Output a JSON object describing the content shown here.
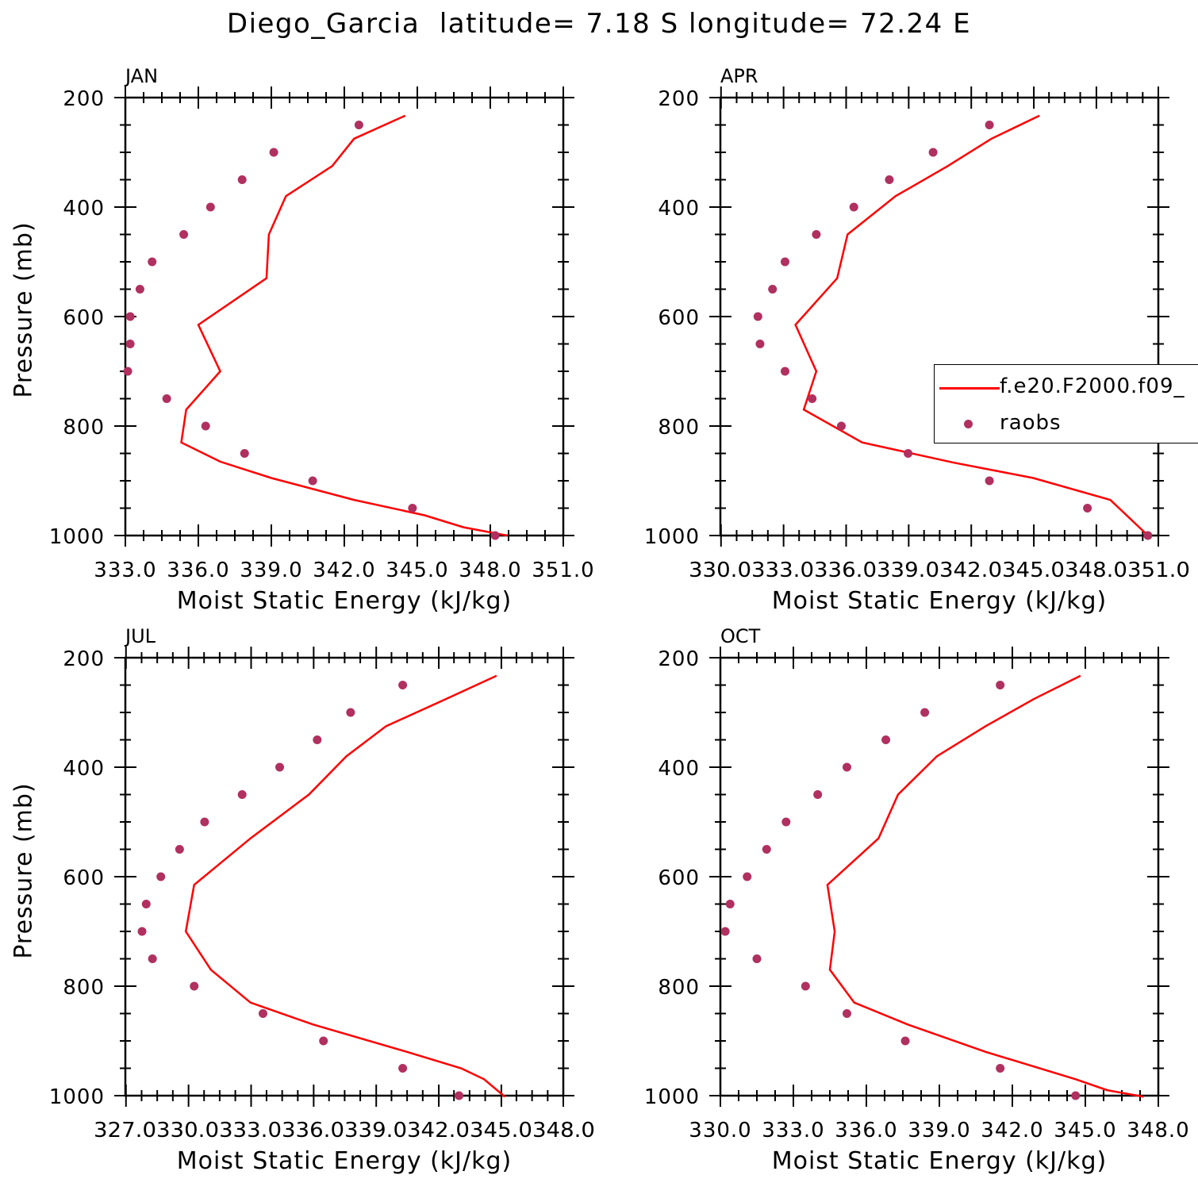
{
  "title": "Diego_Garcia  latitude= 7.18 S longitude= 72.24 E",
  "legend": {
    "model_label": "f.e20.F2000.f09_",
    "obs_label": "raobs",
    "model_color": "#ff0000",
    "obs_color": "#b03060"
  },
  "chart_data": [
    {
      "type": "line",
      "panel": "JAN",
      "xlabel": "Moist Static Energy (kJ/kg)",
      "ylabel": "Pressure (mb)",
      "xlim": [
        333.0,
        351.0
      ],
      "ylim": [
        1000,
        200
      ],
      "xticks": [
        333.0,
        336.0,
        339.0,
        342.0,
        345.0,
        348.0,
        351.0
      ],
      "xtick_labels": [
        "333.0",
        "336.0",
        "339.0",
        "342.0",
        "345.0",
        "348.0",
        "351.0"
      ],
      "yticks": [
        200,
        400,
        600,
        800,
        1000
      ],
      "ytick_labels": [
        "200",
        "400",
        "600",
        "800",
        "1000"
      ],
      "grid": false,
      "series": [
        {
          "name": "f.e20.F2000.f09_",
          "style": "line",
          "x": [
            344.5,
            342.4,
            341.5,
            339.6,
            338.9,
            338.8,
            336.0,
            336.9,
            335.5,
            335.3,
            336.9,
            339.0,
            342.4,
            345.3,
            346.9,
            348.7
          ],
          "y": [
            233,
            275,
            325,
            380,
            450,
            530,
            615,
            700,
            770,
            830,
            865,
            895,
            935,
            963,
            985,
            1000
          ]
        },
        {
          "name": "raobs",
          "style": "markers",
          "x": [
            342.6,
            339.1,
            337.8,
            336.5,
            335.4,
            334.1,
            333.6,
            333.2,
            333.2,
            333.1,
            334.7,
            336.3,
            337.9,
            340.7,
            344.8,
            348.2
          ],
          "y": [
            250,
            300,
            350,
            400,
            450,
            500,
            550,
            600,
            650,
            700,
            750,
            800,
            850,
            900,
            950,
            1000
          ]
        }
      ]
    },
    {
      "type": "line",
      "panel": "APR",
      "xlabel": "Moist Static Energy (kJ/kg)",
      "ylabel": "",
      "xlim": [
        330.0,
        351.0
      ],
      "ylim": [
        1000,
        200
      ],
      "xticks": [
        330.03,
        333.03,
        336.03,
        339.03,
        342.03,
        345.03,
        348.03,
        351.0
      ],
      "xtick_labels": [
        "330.0",
        "333.0",
        "336.0",
        "339.0",
        "342.0",
        "345.0",
        "348.0",
        "351.0"
      ],
      "xtick_text": "330.0333.0336.0339.0342.0345.0348.0351.0",
      "yticks": [
        200,
        400,
        600,
        800,
        1000
      ],
      "ytick_labels": [
        "200",
        "400",
        "600",
        "800",
        "1000"
      ],
      "grid": false,
      "series": [
        {
          "name": "f.e20.F2000.f09_",
          "style": "line",
          "x": [
            345.3,
            343.0,
            340.9,
            338.4,
            336.1,
            335.6,
            333.6,
            334.6,
            334.0,
            336.8,
            341.2,
            345.0,
            348.7,
            350.5
          ],
          "y": [
            233,
            275,
            325,
            380,
            450,
            530,
            615,
            700,
            770,
            830,
            867,
            895,
            935,
            1000
          ]
        },
        {
          "name": "raobs",
          "style": "markers",
          "x": [
            342.9,
            340.2,
            338.1,
            336.4,
            334.6,
            333.1,
            332.5,
            331.8,
            331.9,
            333.1,
            334.4,
            335.8,
            339.0,
            342.9,
            347.6,
            350.5
          ],
          "y": [
            250,
            300,
            350,
            400,
            450,
            500,
            550,
            600,
            650,
            700,
            750,
            800,
            850,
            900,
            950,
            1000
          ]
        }
      ]
    },
    {
      "type": "line",
      "panel": "JUL",
      "xlabel": "Moist Static Energy (kJ/kg)",
      "ylabel": "Pressure (mb)",
      "xlim": [
        327.0,
        348.0
      ],
      "ylim": [
        1000,
        200
      ],
      "xticks": [
        327.03,
        330.03,
        333.03,
        336.03,
        339.03,
        342.03,
        345.03,
        348.0
      ],
      "xtick_labels": [
        "327.0",
        "330.0",
        "333.0",
        "336.0",
        "339.0",
        "342.0",
        "345.0",
        "348.0"
      ],
      "xtick_text": "327.0330.0333.0336.0339.0342.0345.0348.0",
      "yticks": [
        200,
        400,
        600,
        800,
        1000
      ],
      "ytick_labels": [
        "200",
        "400",
        "600",
        "800",
        "1000"
      ],
      "grid": false,
      "series": [
        {
          "name": "f.e20.F2000.f09_",
          "style": "line",
          "x": [
            344.8,
            342.4,
            339.5,
            337.6,
            335.8,
            333.0,
            330.3,
            329.9,
            331.1,
            333.0,
            336.0,
            340.5,
            343.1,
            344.2,
            345.2
          ],
          "y": [
            233,
            275,
            325,
            380,
            450,
            530,
            615,
            700,
            770,
            830,
            870,
            920,
            950,
            970,
            1002
          ]
        },
        {
          "name": "raobs",
          "style": "markers",
          "x": [
            340.3,
            337.8,
            336.2,
            334.4,
            332.6,
            330.8,
            329.6,
            328.7,
            328.0,
            327.8,
            328.3,
            330.3,
            333.6,
            336.5,
            340.3,
            343.0
          ],
          "y": [
            250,
            300,
            350,
            400,
            450,
            500,
            550,
            600,
            650,
            700,
            750,
            800,
            850,
            900,
            950,
            1000
          ]
        }
      ]
    },
    {
      "type": "line",
      "panel": "OCT",
      "xlabel": "Moist Static Energy (kJ/kg)",
      "ylabel": "",
      "xlim": [
        330.0,
        348.0
      ],
      "ylim": [
        1000,
        200
      ],
      "xticks": [
        330.0,
        333.0,
        336.0,
        339.0,
        342.0,
        345.0,
        348.0
      ],
      "xtick_labels": [
        "330.0",
        "333.0",
        "336.0",
        "339.0",
        "342.0",
        "345.0",
        "348.0"
      ],
      "yticks": [
        200,
        400,
        600,
        800,
        1000
      ],
      "ytick_labels": [
        "200",
        "400",
        "600",
        "800",
        "1000"
      ],
      "grid": false,
      "series": [
        {
          "name": "f.e20.F2000.f09_",
          "style": "line",
          "x": [
            344.8,
            342.9,
            340.9,
            338.9,
            337.3,
            336.5,
            334.4,
            334.7,
            334.5,
            335.5,
            337.7,
            340.9,
            344.6,
            345.9,
            347.4
          ],
          "y": [
            233,
            275,
            325,
            380,
            450,
            530,
            615,
            700,
            770,
            830,
            870,
            920,
            970,
            990,
            1002
          ]
        },
        {
          "name": "raobs",
          "style": "markers",
          "x": [
            341.5,
            338.4,
            336.8,
            335.2,
            334.0,
            332.7,
            331.9,
            331.1,
            330.4,
            330.2,
            331.5,
            333.5,
            335.2,
            337.6,
            341.5,
            344.6
          ],
          "y": [
            250,
            300,
            350,
            400,
            450,
            500,
            550,
            600,
            650,
            700,
            750,
            800,
            850,
            900,
            950,
            1000
          ]
        }
      ]
    }
  ]
}
